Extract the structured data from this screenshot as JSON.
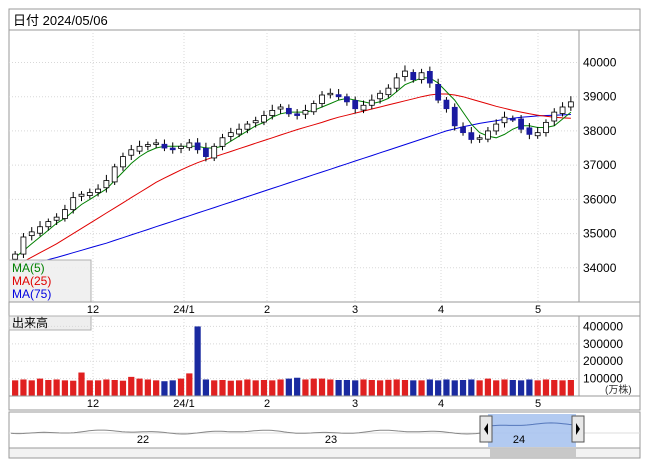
{
  "header": {
    "date_label": "日付 2024/05/06"
  },
  "price_panel": {
    "y_ticks": [
      "40000",
      "39000",
      "38000",
      "37000",
      "36000",
      "35000",
      "34000"
    ],
    "y_tick_values": [
      40000,
      39000,
      38000,
      37000,
      36000,
      35000,
      34000
    ],
    "y_range": [
      33000,
      40950
    ],
    "legend": [
      {
        "label": "MA(5)",
        "color": "#008000"
      },
      {
        "label": "MA(25)",
        "color": "#e00000"
      },
      {
        "label": "MA(75)",
        "color": "#0000e0"
      }
    ]
  },
  "x_axis": {
    "labels": [
      "12",
      "24/1",
      "2",
      "3",
      "4",
      "5"
    ]
  },
  "volume_panel": {
    "title": "出来高",
    "y_ticks": [
      "400000",
      "300000",
      "200000",
      "100000"
    ],
    "y_tick_values": [
      400000,
      300000,
      200000,
      100000
    ],
    "unit": "(万株)"
  },
  "navigator": {
    "labels": [
      "22",
      "23",
      "24"
    ]
  },
  "colors": {
    "up_candle": "#ffffff",
    "down_candle": "#1a1aa0",
    "volume_up": "#e02020",
    "volume_down": "#1a2aa0",
    "navigator_selection": "#aac4ef"
  },
  "chart_data": {
    "type": "candlestick",
    "title": "",
    "x_tick_labels": [
      "12",
      "24/1",
      "2",
      "3",
      "4",
      "5"
    ],
    "ylim": [
      33000,
      40950
    ],
    "close": [
      34400,
      34900,
      35050,
      35200,
      35350,
      35480,
      35700,
      36050,
      36150,
      36200,
      36300,
      36550,
      36950,
      37250,
      37450,
      37550,
      37600,
      37650,
      37500,
      37450,
      37550,
      37650,
      37450,
      37250,
      37550,
      37800,
      37950,
      38050,
      38200,
      38300,
      38450,
      38600,
      38700,
      38500,
      38450,
      38600,
      38800,
      39050,
      39100,
      39000,
      38850,
      38650,
      38750,
      38900,
      39100,
      39250,
      39550,
      39750,
      39500,
      39700,
      39400,
      38900,
      38650,
      38150,
      37950,
      37750,
      37800,
      38000,
      38200,
      38400,
      38350,
      38050,
      37900,
      37950,
      38250,
      38550,
      38700,
      38850
    ],
    "ma5": [
      34300,
      34500,
      34700,
      34900,
      35100,
      35300,
      35450,
      35650,
      35850,
      36000,
      36150,
      36300,
      36550,
      36800,
      37050,
      37250,
      37400,
      37500,
      37550,
      37550,
      37550,
      37550,
      37550,
      37500,
      37500,
      37550,
      37700,
      37850,
      38000,
      38150,
      38250,
      38400,
      38500,
      38550,
      38550,
      38550,
      38600,
      38700,
      38800,
      38900,
      38950,
      38900,
      38850,
      38800,
      38850,
      38950,
      39150,
      39350,
      39450,
      39550,
      39550,
      39400,
      39150,
      38900,
      38550,
      38200,
      37950,
      37850,
      37800,
      37900,
      38050,
      38150,
      38150,
      38100,
      38100,
      38150,
      38350,
      38550
    ],
    "ma25": [
      34050,
      34180,
      34310,
      34440,
      34570,
      34700,
      34850,
      35000,
      35150,
      35300,
      35450,
      35600,
      35750,
      35900,
      36050,
      36200,
      36350,
      36500,
      36620,
      36740,
      36860,
      36970,
      37070,
      37160,
      37240,
      37320,
      37400,
      37480,
      37560,
      37640,
      37720,
      37800,
      37880,
      37960,
      38040,
      38110,
      38180,
      38250,
      38330,
      38400,
      38460,
      38520,
      38580,
      38640,
      38700,
      38760,
      38820,
      38880,
      38940,
      39000,
      39050,
      39080,
      39080,
      39050,
      39000,
      38930,
      38860,
      38790,
      38720,
      38660,
      38600,
      38550,
      38500,
      38460,
      38430,
      38400,
      38380,
      38370
    ],
    "ma75": [
      34000,
      34060,
      34120,
      34180,
      34240,
      34300,
      34370,
      34440,
      34510,
      34580,
      34650,
      34720,
      34800,
      34880,
      34960,
      35040,
      35120,
      35200,
      35280,
      35360,
      35440,
      35520,
      35600,
      35680,
      35760,
      35840,
      35920,
      36000,
      36080,
      36160,
      36240,
      36320,
      36400,
      36480,
      36560,
      36640,
      36720,
      36800,
      36880,
      36960,
      37040,
      37120,
      37200,
      37280,
      37360,
      37440,
      37520,
      37600,
      37680,
      37760,
      37840,
      37920,
      38000,
      38060,
      38120,
      38170,
      38220,
      38260,
      38300,
      38340,
      38370,
      38400,
      38420,
      38440,
      38450,
      38460,
      38470,
      38480
    ],
    "volume": [
      90000,
      95000,
      90000,
      100000,
      92000,
      95000,
      90000,
      88000,
      135000,
      90000,
      90000,
      95000,
      92000,
      88000,
      110000,
      100000,
      95000,
      90000,
      85000,
      90000,
      100000,
      130000,
      400000,
      95000,
      90000,
      92000,
      88000,
      90000,
      95000,
      90000,
      92000,
      90000,
      95000,
      100000,
      105000,
      95000,
      100000,
      100000,
      95000,
      92000,
      92000,
      90000,
      95000,
      92000,
      90000,
      93000,
      95000,
      92000,
      90000,
      90000,
      95000,
      90000,
      95000,
      90000,
      92000,
      95000,
      90000,
      100000,
      90000,
      95000,
      92000,
      90000,
      95000,
      90000,
      95000,
      92000,
      90000,
      92000
    ]
  }
}
